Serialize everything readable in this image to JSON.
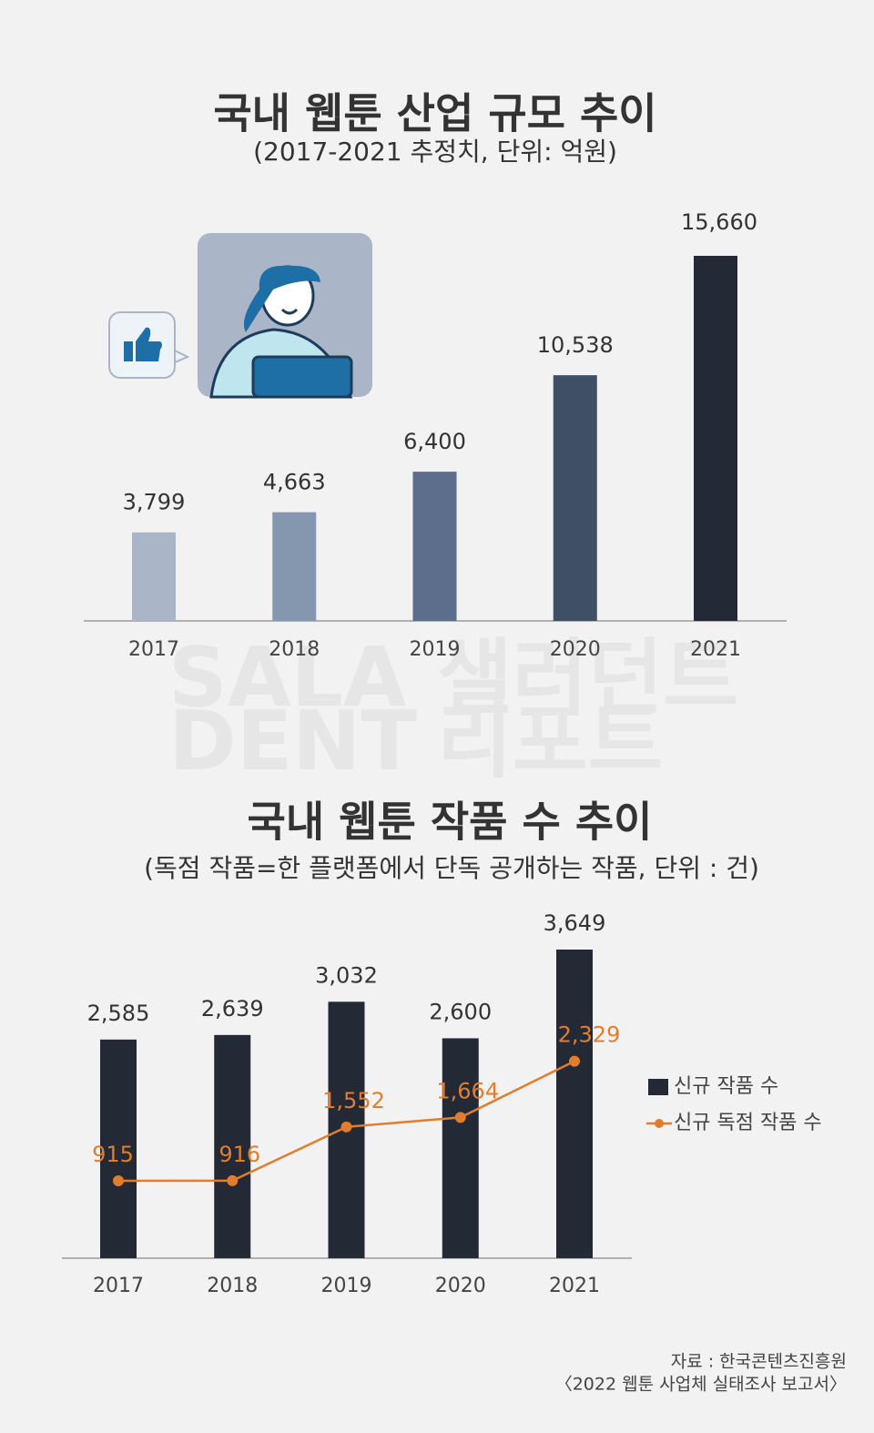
{
  "chart_data": [
    {
      "type": "bar",
      "title": "국내 웹툰 산업 규모 추이",
      "subtitle": "(2017-2021 추정치, 단위: 억원)",
      "categories": [
        "2017",
        "2018",
        "2019",
        "2020",
        "2021"
      ],
      "values": [
        3799,
        4663,
        6400,
        10538,
        15660
      ],
      "value_labels": [
        "3,799",
        "4,663",
        "6,400",
        "10,538",
        "15,660"
      ],
      "colors": [
        "#aab5c7",
        "#8597af",
        "#5c6e8c",
        "#3f4f66",
        "#232a35"
      ]
    },
    {
      "type": "bar-line",
      "title": "국내 웹툰 작품 수 추이",
      "subtitle": "(독점 작품=한 플랫폼에서 단독 공개하는 작품, 단위 : 건)",
      "categories": [
        "2017",
        "2018",
        "2019",
        "2020",
        "2021"
      ],
      "series": [
        {
          "name": "신규 작품 수",
          "type": "bar",
          "color": "#232a35",
          "values": [
            2585,
            2639,
            3032,
            2600,
            3649
          ],
          "value_labels": [
            "2,585",
            "2,639",
            "3,032",
            "2,600",
            "3,649"
          ]
        },
        {
          "name": "신규 독점 작품 수",
          "type": "line",
          "color": "#e07d2e",
          "values": [
            915,
            916,
            1552,
            1664,
            2329
          ],
          "value_labels": [
            "915",
            "916",
            "1,552",
            "1,664",
            "2,329"
          ]
        }
      ],
      "legend": "right"
    }
  ],
  "watermark": [
    "SALA",
    "샐러던트",
    "DENT",
    "리포트"
  ],
  "source": [
    "자료 : 한국콘텐츠진흥원",
    "〈2022 웹툰 사업체 실태조사 보고서〉"
  ]
}
